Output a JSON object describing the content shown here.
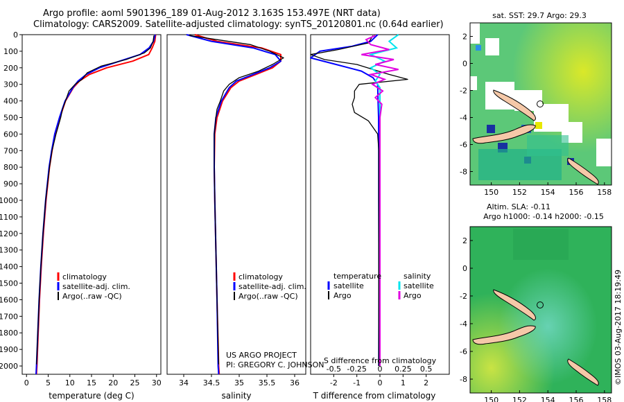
{
  "header": {
    "line1": "Argo profile: aoml 5901396_189 01-Aug-2012 3.163S 153.497E (NRT data)",
    "line2": "Climatology: CARS2009. Satellite-adjusted climatology: synTS_20120801.nc (0.64d earlier)"
  },
  "credits": {
    "project": "US ARGO PROJECT",
    "pi": "PI: GREGORY C. JOHNSON",
    "stamp": "©IMOS 03-Aug-2017 18:19:49"
  },
  "colors": {
    "climatology": "#ff0000",
    "satellite": "#0000ff",
    "argo": "#000000",
    "sat_salinity": "#00e5ee",
    "argo_salinity": "#e000e0",
    "land": "#f5c8a8",
    "sst_warm": "#e8e800",
    "sst_mid": "#5cc878",
    "sst_cool": "#2060c0",
    "sla_base": "#2fb25a"
  },
  "chart_data": [
    {
      "type": "line",
      "name": "temperature-profile",
      "xlabel": "temperature (deg C)",
      "ylabel": "",
      "xlim": [
        -1,
        31
      ],
      "ylim": [
        2050,
        0
      ],
      "xticks": [
        0,
        5,
        10,
        15,
        20,
        25,
        30
      ],
      "yticks": [
        0,
        100,
        200,
        300,
        400,
        500,
        600,
        700,
        800,
        900,
        1000,
        1100,
        1200,
        1300,
        1400,
        1500,
        1600,
        1700,
        1800,
        1900,
        2000
      ],
      "legend": [
        "climatology",
        "satellite-adj. clim.",
        "Argo(..raw -QC)"
      ],
      "series": [
        {
          "name": "climatology",
          "depth": [
            0,
            40,
            80,
            120,
            160,
            200,
            240,
            280,
            320,
            400,
            500,
            600,
            700,
            800,
            1000,
            1200,
            1400,
            1600,
            1800,
            2000,
            2050
          ],
          "values": [
            29.8,
            29.6,
            29.0,
            28.2,
            24.5,
            18.5,
            14.5,
            12.2,
            10.8,
            9.0,
            7.7,
            6.6,
            5.9,
            5.3,
            4.5,
            3.9,
            3.4,
            3.0,
            2.7,
            2.4,
            2.3
          ]
        },
        {
          "name": "satellite-adj. clim.",
          "depth": [
            0,
            40,
            80,
            120,
            160,
            200,
            240,
            280,
            320,
            400,
            500,
            600,
            700,
            800,
            1000,
            1200,
            1400,
            1600,
            1800,
            2000,
            2050
          ],
          "values": [
            29.7,
            29.3,
            28.3,
            26.2,
            21.5,
            16.8,
            13.8,
            11.9,
            10.7,
            8.9,
            7.6,
            6.5,
            5.8,
            5.2,
            4.4,
            3.8,
            3.3,
            2.9,
            2.6,
            2.3,
            2.2
          ]
        },
        {
          "name": "Argo(..raw -QC)",
          "depth": [
            5,
            40,
            80,
            110,
            150,
            190,
            230,
            270,
            300,
            340,
            400,
            450,
            500,
            600,
            700,
            800,
            1000,
            1200,
            1400,
            1600,
            1800,
            1990
          ],
          "values": [
            29.4,
            29.2,
            28.6,
            27.2,
            23.0,
            17.2,
            14.0,
            12.8,
            11.2,
            9.8,
            9.0,
            8.3,
            7.9,
            6.8,
            5.9,
            5.3,
            4.4,
            3.8,
            3.3,
            2.9,
            2.6,
            2.3
          ]
        }
      ]
    },
    {
      "type": "line",
      "name": "salinity-profile",
      "xlabel": "salinity",
      "xlim": [
        33.7,
        36.2
      ],
      "ylim": [
        2050,
        0
      ],
      "xticks": [
        34,
        34.5,
        35,
        35.5,
        36
      ],
      "legend": [
        "climatology",
        "satellite-adj. clim.",
        "Argo(..raw -QC)"
      ],
      "series": [
        {
          "name": "climatology",
          "depth": [
            0,
            40,
            80,
            120,
            160,
            200,
            240,
            280,
            320,
            400,
            500,
            600,
            800,
            1000,
            1300,
            1600,
            2000,
            2050
          ],
          "values": [
            34.2,
            34.6,
            35.4,
            35.75,
            35.75,
            35.6,
            35.3,
            35.0,
            34.85,
            34.7,
            34.6,
            34.56,
            34.55,
            34.56,
            34.58,
            34.6,
            34.63,
            34.64
          ]
        },
        {
          "name": "satellite-adj. clim.",
          "depth": [
            0,
            40,
            80,
            120,
            160,
            200,
            240,
            280,
            320,
            400,
            500,
            600,
            800,
            1000,
            1300,
            1600,
            2000,
            2050
          ],
          "values": [
            34.05,
            34.5,
            35.25,
            35.65,
            35.75,
            35.55,
            35.25,
            34.95,
            34.82,
            34.68,
            34.58,
            34.55,
            34.55,
            34.56,
            34.58,
            34.6,
            34.62,
            34.63
          ]
        },
        {
          "name": "Argo(..raw -QC)",
          "depth": [
            5,
            30,
            60,
            100,
            140,
            180,
            220,
            260,
            300,
            340,
            400,
            450,
            500,
            600,
            800,
            1000,
            1300,
            1600,
            1990
          ],
          "values": [
            34.1,
            34.6,
            35.2,
            35.55,
            35.8,
            35.6,
            35.35,
            35.0,
            34.82,
            34.72,
            34.66,
            34.6,
            34.58,
            34.55,
            34.55,
            34.56,
            34.58,
            34.6,
            34.63
          ]
        }
      ]
    },
    {
      "type": "line",
      "name": "difference-profile",
      "xlabel": "T difference from climatology",
      "xlabel2": "S difference from climatology",
      "xlim": [
        -3,
        3
      ],
      "ylim": [
        2050,
        0
      ],
      "xticks": [
        -2,
        -1,
        0,
        1,
        2
      ],
      "xticks2": [
        "-0.5",
        "-0.25",
        "0",
        "0.25",
        "0.5"
      ],
      "legend_headers": [
        "temperature",
        "salinity"
      ],
      "legend": [
        "satellite",
        "Argo",
        "satellite",
        "Argo"
      ],
      "series": [
        {
          "name": "T satellite",
          "depth": [
            0,
            40,
            70,
            100,
            140,
            180,
            220,
            260,
            300,
            400,
            500,
            700,
            1000,
            1500,
            2000
          ],
          "values": [
            -0.1,
            -0.4,
            -1.2,
            -2.6,
            -3.0,
            -1.9,
            -0.8,
            -0.3,
            -0.1,
            -0.08,
            -0.06,
            -0.05,
            -0.05,
            -0.04,
            -0.05
          ]
        },
        {
          "name": "T Argo",
          "depth": [
            5,
            50,
            90,
            120,
            150,
            180,
            210,
            240,
            270,
            300,
            340,
            380,
            420,
            470,
            520,
            600,
            700,
            800,
            1000,
            1300,
            1600,
            2000
          ],
          "values": [
            -0.3,
            -0.5,
            -1.8,
            -3.0,
            -2.4,
            -1.0,
            -0.3,
            0.4,
            1.2,
            -0.9,
            -1.1,
            -1.1,
            -1.2,
            -1.1,
            -0.5,
            -0.1,
            -0.05,
            -0.05,
            -0.05,
            -0.05,
            -0.05,
            -0.05
          ]
        },
        {
          "name": "S satellite",
          "depth": [
            0,
            40,
            80,
            120,
            160,
            200,
            240,
            280,
            320,
            400,
            500,
            800,
            1200,
            2000
          ],
          "values": [
            0.2,
            0.1,
            0.18,
            -0.1,
            0.05,
            -0.1,
            0.0,
            -0.05,
            0.0,
            0.0,
            0.0,
            0.0,
            0.0,
            0.0
          ]
        },
        {
          "name": "S Argo",
          "depth": [
            5,
            30,
            60,
            90,
            120,
            150,
            180,
            210,
            240,
            270,
            300,
            340,
            380,
            420,
            500,
            800,
            1200,
            2000
          ],
          "values": [
            -0.05,
            -0.15,
            -0.1,
            0.1,
            -0.2,
            0.15,
            -0.05,
            0.2,
            -0.1,
            0.05,
            -0.08,
            0.03,
            -0.05,
            0.02,
            0.0,
            0.0,
            0.0,
            0.0
          ]
        }
      ]
    },
    {
      "type": "heatmap",
      "name": "sst-map",
      "title": "sat. SST: 29.7  Argo: 29.3",
      "xlim": [
        148.5,
        158.5
      ],
      "ylim": [
        -9,
        3
      ],
      "xticks": [
        150,
        152,
        154,
        156,
        158
      ],
      "yticks": [
        2,
        0,
        -2,
        -4,
        -6,
        -8
      ],
      "marker": {
        "lon": 153.497,
        "lat": -3.163
      }
    },
    {
      "type": "heatmap",
      "name": "sla-map",
      "title": "Altim. SLA: -0.11",
      "subtitle": "Argo h1000: -0.14  h2000: -0.15",
      "xlim": [
        148.5,
        158.5
      ],
      "ylim": [
        -9,
        3
      ],
      "xticks": [
        150,
        152,
        154,
        156,
        158
      ],
      "yticks": [
        2,
        0,
        -2,
        -4,
        -6,
        -8
      ],
      "marker": {
        "lon": 153.497,
        "lat": -3.163
      }
    }
  ]
}
